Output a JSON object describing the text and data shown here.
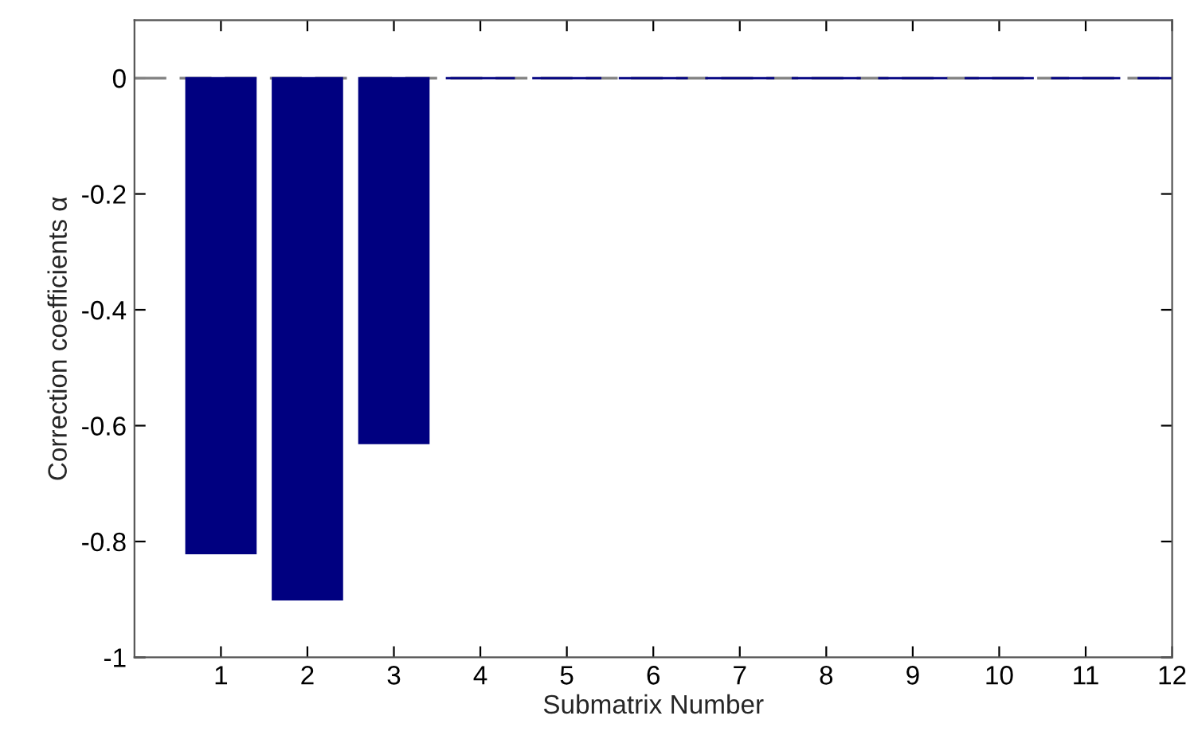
{
  "chart_data": {
    "type": "bar",
    "xlabel": "Submatrix Number",
    "ylabel": "Correction coefficients α",
    "x": [
      1,
      2,
      3,
      4,
      5,
      6,
      7,
      8,
      9,
      10,
      11,
      12
    ],
    "values": [
      -0.82,
      -0.9,
      -0.63,
      0,
      0,
      0,
      0,
      0,
      0,
      0,
      0,
      0
    ],
    "color": "#000080",
    "xlim": [
      0,
      12
    ],
    "xticks": [
      1,
      2,
      3,
      4,
      5,
      6,
      7,
      8,
      9,
      10,
      11,
      12
    ],
    "ylim": [
      -1,
      0.1
    ],
    "yticks": [
      -1,
      -0.8,
      -0.6,
      -0.4,
      -0.2,
      0
    ],
    "ref_lines": [
      {
        "axis": "y",
        "value": 0,
        "color": "#808080",
        "line_style": "dashed"
      }
    ],
    "grid": false
  }
}
